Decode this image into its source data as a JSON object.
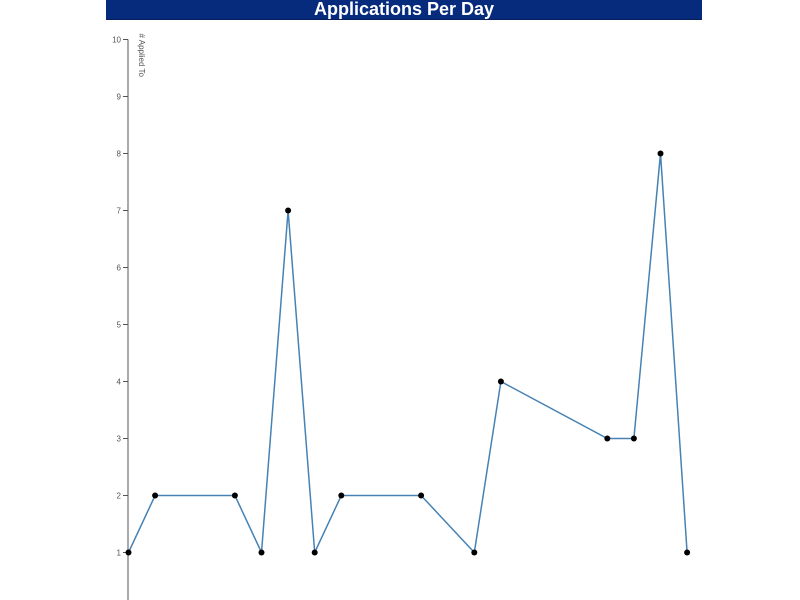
{
  "header": {
    "title": "Applications Per Day"
  },
  "chart_data": {
    "type": "line",
    "title": "Applications Per Day",
    "xlabel": "",
    "ylabel": "# Applied To",
    "ylim": [
      0,
      10
    ],
    "yticks": [
      "1",
      "2",
      "3",
      "4",
      "5",
      "6",
      "7",
      "8",
      "9",
      "10"
    ],
    "x": [
      0,
      1,
      4,
      5,
      6,
      7,
      8,
      11,
      13,
      14,
      18,
      19,
      20,
      21
    ],
    "series": [
      {
        "values": [
          1,
          2,
          2,
          1,
          7,
          1,
          2,
          2,
          1,
          4,
          3,
          3,
          8,
          1
        ]
      }
    ],
    "grid": false,
    "colors": {
      "line": "#4682b4",
      "point": "#000000",
      "axis": "#555555",
      "header_bg": "#062a7c"
    }
  }
}
